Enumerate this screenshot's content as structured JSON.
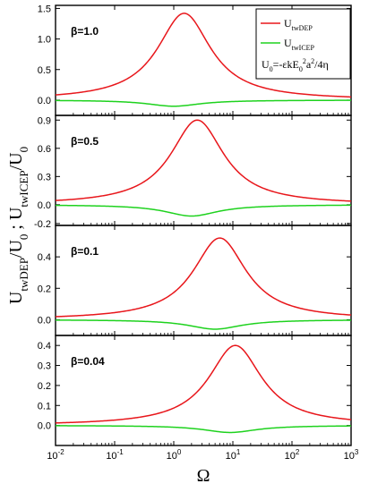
{
  "chart_data": {
    "type": "line",
    "x_scale": "log",
    "xlim": [
      0.01,
      1000
    ],
    "xlabel": "Ω",
    "x_ticks": [
      {
        "base": "10",
        "exp": "-2"
      },
      {
        "base": "10",
        "exp": "-1"
      },
      {
        "base": "10",
        "exp": "0"
      },
      {
        "base": "10",
        "exp": "1"
      },
      {
        "base": "10",
        "exp": "2"
      },
      {
        "base": "10",
        "exp": "3"
      }
    ],
    "ylabel": {
      "parts": [
        {
          "t": "U",
          "sub": "twDEP"
        },
        {
          "t": "/U",
          "sub": "0"
        },
        {
          "t": " ; U",
          "sub": "twICEP"
        },
        {
          "t": "/U",
          "sub": "0"
        }
      ]
    },
    "legend": {
      "position": "top-right",
      "entries": [
        {
          "main": "U",
          "sub": "twDEP",
          "color": "#e8161b"
        },
        {
          "main": "U",
          "sub": "twICEP",
          "color": "#1ed21e"
        }
      ],
      "note": [
        {
          "t": "U",
          "k": "n"
        },
        {
          "t": "0",
          "k": "sub"
        },
        {
          "t": "=-εkE",
          "k": "n"
        },
        {
          "t": "0",
          "k": "sub"
        },
        {
          "t": "2",
          "k": "sup"
        },
        {
          "t": "a",
          "k": "n"
        },
        {
          "t": "2",
          "k": "sup"
        },
        {
          "t": "/4η",
          "k": "n"
        }
      ]
    },
    "panels": [
      {
        "label": "β=1.0",
        "ylim": [
          -0.25,
          1.55
        ],
        "y_ticks": [
          "0.0",
          "0.5",
          "1.0",
          "1.5"
        ],
        "y_tick_values": [
          0.0,
          0.5,
          1.0,
          1.5
        ],
        "series": [
          {
            "key": "dep",
            "color": "#e8161b",
            "peak_omega": 1.5,
            "peak_value": 1.42,
            "width_decades": 0.55
          },
          {
            "key": "icep",
            "color": "#1ed21e",
            "peak_omega": 1.0,
            "peak_value": -0.1,
            "width_decades": 0.55
          }
        ]
      },
      {
        "label": "β=0.5",
        "ylim": [
          -0.22,
          0.95
        ],
        "y_ticks": [
          "-0.2",
          "0.0",
          "0.3",
          "0.6",
          "0.9"
        ],
        "y_tick_values": [
          -0.2,
          0.0,
          0.3,
          0.6,
          0.9
        ],
        "series": [
          {
            "key": "dep",
            "color": "#e8161b",
            "peak_omega": 2.5,
            "peak_value": 0.9,
            "width_decades": 0.55
          },
          {
            "key": "icep",
            "color": "#1ed21e",
            "peak_omega": 2.0,
            "peak_value": -0.12,
            "width_decades": 0.55
          }
        ]
      },
      {
        "label": "β=0.1",
        "ylim": [
          -0.1,
          0.6
        ],
        "y_ticks": [
          "0.0",
          "0.2",
          "0.4"
        ],
        "y_tick_values": [
          0.0,
          0.2,
          0.4
        ],
        "series": [
          {
            "key": "dep",
            "color": "#e8161b",
            "peak_omega": 6.0,
            "peak_value": 0.52,
            "width_decades": 0.55
          },
          {
            "key": "icep",
            "color": "#1ed21e",
            "peak_omega": 5.0,
            "peak_value": -0.06,
            "width_decades": 0.55
          }
        ]
      },
      {
        "label": "β=0.04",
        "ylim": [
          -0.1,
          0.45
        ],
        "y_ticks": [
          "0.0",
          "0.1",
          "0.2",
          "0.3",
          "0.4"
        ],
        "y_tick_values": [
          0.0,
          0.1,
          0.2,
          0.3,
          0.4
        ],
        "series": [
          {
            "key": "dep",
            "color": "#e8161b",
            "peak_omega": 11.0,
            "peak_value": 0.4,
            "width_decades": 0.55
          },
          {
            "key": "icep",
            "color": "#1ed21e",
            "peak_omega": 9.0,
            "peak_value": -0.035,
            "width_decades": 0.55
          }
        ]
      }
    ]
  }
}
